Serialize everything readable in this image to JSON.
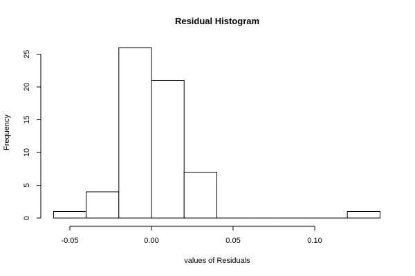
{
  "chart_data": {
    "type": "bar",
    "title": "Residual Histogram",
    "xlabel": "values of Residuals",
    "ylabel": "Frequency",
    "bins": [
      {
        "start": -0.06,
        "end": -0.04,
        "count": 1
      },
      {
        "start": -0.04,
        "end": -0.02,
        "count": 4
      },
      {
        "start": -0.02,
        "end": 0.0,
        "count": 26
      },
      {
        "start": 0.0,
        "end": 0.02,
        "count": 21
      },
      {
        "start": 0.02,
        "end": 0.04,
        "count": 7
      },
      {
        "start": 0.04,
        "end": 0.06,
        "count": 0
      },
      {
        "start": 0.06,
        "end": 0.08,
        "count": 0
      },
      {
        "start": 0.08,
        "end": 0.1,
        "count": 0
      },
      {
        "start": 0.1,
        "end": 0.12,
        "count": 0
      },
      {
        "start": 0.12,
        "end": 0.14,
        "count": 1
      }
    ],
    "xlim": [
      -0.06,
      0.14
    ],
    "ylim": [
      0,
      26
    ],
    "x_ticks": [
      -0.05,
      0.0,
      0.05,
      0.1
    ],
    "x_tick_labels": [
      "-0.05",
      "0.00",
      "0.05",
      "0.10"
    ],
    "y_ticks": [
      0,
      5,
      10,
      15,
      20,
      25
    ],
    "y_tick_labels": [
      "0",
      "5",
      "10",
      "15",
      "20",
      "25"
    ],
    "grid": false,
    "legend": "none"
  }
}
